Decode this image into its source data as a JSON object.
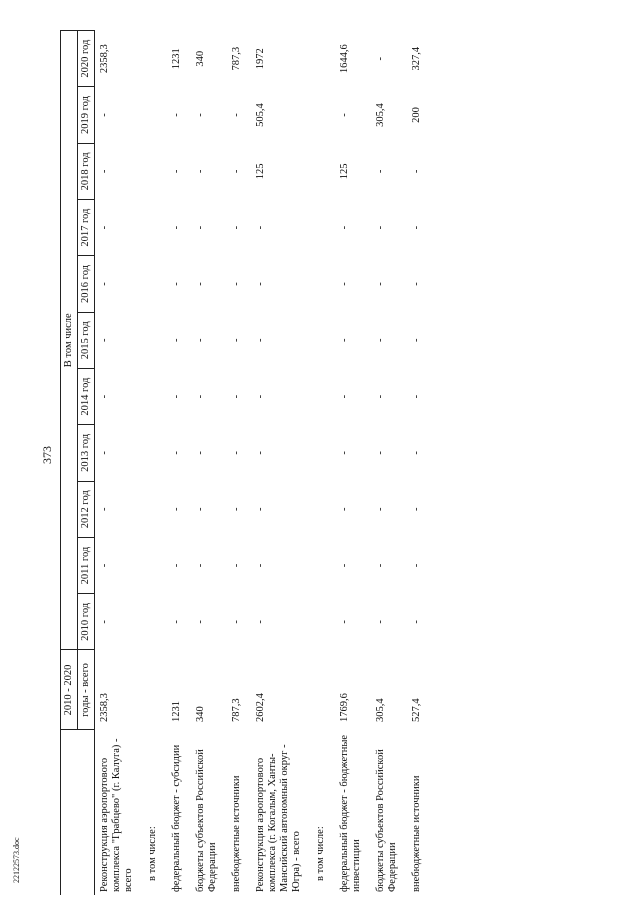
{
  "page_number": "373",
  "footer": "22122573.doc",
  "table": {
    "header": {
      "total_line1": "2010 - 2020",
      "total_line2": "годы - всего",
      "group": "В том числе",
      "years": [
        "2010 год",
        "2011 год",
        "2012 год",
        "2013 год",
        "2014 год",
        "2015 год",
        "2016 год",
        "2017 год",
        "2018 год",
        "2019 год",
        "2020 год"
      ]
    },
    "rows": [
      {
        "label": "Реконструкция аэропортового комплекса \"Грабцево\" (г. Калуга) - всего",
        "values": [
          "2358,3",
          "-",
          "-",
          "-",
          "-",
          "-",
          "-",
          "-",
          "-",
          "-",
          "-",
          "2358,3"
        ]
      },
      {
        "label": "в том числе:"
      },
      {
        "label": "федеральный бюджет - субсидии",
        "values": [
          "1231",
          "-",
          "-",
          "-",
          "-",
          "-",
          "-",
          "-",
          "-",
          "-",
          "-",
          "1231"
        ]
      },
      {
        "label": "бюджеты субъектов Российской Федерации",
        "values": [
          "340",
          "-",
          "-",
          "-",
          "-",
          "-",
          "-",
          "-",
          "-",
          "-",
          "-",
          "340"
        ]
      },
      {
        "label": "внебюджетные источники",
        "values": [
          "787,3",
          "-",
          "-",
          "-",
          "-",
          "-",
          "-",
          "-",
          "-",
          "-",
          "-",
          "787,3"
        ]
      },
      {
        "label": "Реконструкция аэропортового комплекса (г. Когалым, Ханты-Мансийский автономный округ - Югра) - всего",
        "values": [
          "2602,4",
          "-",
          "-",
          "-",
          "-",
          "-",
          "-",
          "-",
          "-",
          "125",
          "505,4",
          "1972"
        ]
      },
      {
        "label": "в том числе:"
      },
      {
        "label": "федеральный бюджет - бюджетные инвестиции",
        "values": [
          "1769,6",
          "-",
          "-",
          "-",
          "-",
          "-",
          "-",
          "-",
          "-",
          "125",
          "-",
          "1644,6"
        ]
      },
      {
        "label": "бюджеты субъектов Российской Федерации",
        "values": [
          "305,4",
          "-",
          "-",
          "-",
          "-",
          "-",
          "-",
          "-",
          "-",
          "-",
          "305,4",
          "-"
        ]
      },
      {
        "label": "внебюджетные источники",
        "values": [
          "527,4",
          "-",
          "-",
          "-",
          "-",
          "-",
          "-",
          "-",
          "-",
          "-",
          "200",
          "327,4"
        ]
      }
    ]
  }
}
